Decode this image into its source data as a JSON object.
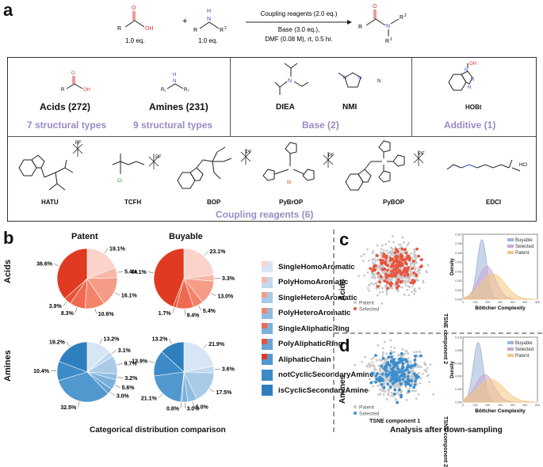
{
  "panels": {
    "a": "a",
    "b": "b",
    "c": "c",
    "d": "d"
  },
  "reaction": {
    "acid_eq": "1.0 eq.",
    "amine_eq": "1.0 eq.",
    "plus": "+",
    "conditions_top": "Coupling reagents (2.0 eq.)",
    "conditions_bottom_1": "Base (3.0 eq.),",
    "conditions_bottom_2": "DMF (0.08 M), rt, 0.5 hr.",
    "atoms": {
      "R": "R",
      "OH": "OH",
      "N": "N",
      "H": "H",
      "R1": "R",
      "R2": "R",
      "O": "O",
      "sup1": "1",
      "sup2": "2"
    }
  },
  "reagent_box": {
    "acids_label": "Acids (272)",
    "amines_label": "Amines (231)",
    "acids_types": "7 structural types",
    "amines_types": "9 structural types",
    "base_items": [
      "DIEA",
      "NMI"
    ],
    "base_n": "N",
    "base_label": "Base (2)",
    "additive_item": "HOBt",
    "additive_label": "Additive (1)",
    "coupling_items": [
      "HATU",
      "TCFH",
      "BOP",
      "PyBrOP",
      "PyBOP",
      "EDCI"
    ],
    "coupling_label": "Coupling reagents (6)",
    "hcl": "HCl",
    "pf6": "PF",
    "br": "Br",
    "cl": "Cl",
    "oh": "OH",
    "atoms_amine": "R₁",
    "atoms_amine2": "R₂"
  },
  "pies": {
    "col_patent": "Patent",
    "col_buyable": "Buyable",
    "row_acids": "Acids",
    "row_amines": "Amines",
    "caption": "Categorical distribution comparison",
    "acids_patent": {
      "values": [
        19.1,
        5.4,
        16.1,
        10.6,
        8.3,
        3.9,
        36.6
      ],
      "labels": [
        "19.1%",
        "5.4%",
        "16.1%",
        "10.6%",
        "8.3%",
        "3.9%",
        "36.6%"
      ]
    },
    "acids_buyable": {
      "values": [
        23.1,
        3.3,
        13.0,
        5.4,
        9.4,
        1.7,
        44.1
      ],
      "labels": [
        "23.1%",
        "3.3%",
        "13.0%",
        "5.4%",
        "9.4%",
        "1.7%",
        "44.1%"
      ]
    },
    "amines_patent": {
      "values": [
        13.2,
        3.1,
        9.7,
        3.2,
        5.6,
        3.0,
        32.5,
        10.4,
        19.2
      ],
      "labels": [
        "13.2%",
        "3.1%",
        "9.7%",
        "3.2%",
        "5.6%",
        "3.0%",
        "32.5%",
        "10.4%",
        "19.2%"
      ]
    },
    "amines_buyable": {
      "values": [
        21.9,
        3.6,
        17.5,
        5.0,
        3.0,
        0.8,
        21.1,
        13.9,
        13.2
      ],
      "labels": [
        "21.9%",
        "3.6%",
        "17.5%",
        "5.0%",
        "3.0%",
        "0.8%",
        "21.1%",
        "13.9%",
        "13.2%"
      ]
    },
    "acid_colors": [
      "#fbd3ca",
      "#f7b7a6",
      "#f59c86",
      "#f3846b",
      "#ef6a50",
      "#ea5337",
      "#e03a22"
    ],
    "amine_colors": [
      "#d6e6f4",
      "#c2d9ef",
      "#a9cbe8",
      "#90bce2",
      "#7bb0dc",
      "#67a4d6",
      "#5198cf",
      "#3d8bc8",
      "#2f7fbf"
    ]
  },
  "legend": {
    "items": [
      "SingleHomoAromatic",
      "PolyHomoAromatic",
      "SingleHeteroAromatic",
      "PolyHeteroAromatic",
      "SingleAliphaticRing",
      "PolyAliphaticRing",
      "AliphaticChain",
      "notCyclicSecondaryAmine",
      "isCyclicSecondaryAmine"
    ],
    "acid_colors": [
      "#fbd3ca",
      "#f7b7a6",
      "#f59c86",
      "#f3846b",
      "#ef6a50",
      "#ea5337",
      "#e03a22"
    ],
    "amine_colors": [
      "#d6e6f4",
      "#c2d9ef",
      "#a9cbe8",
      "#90bce2",
      "#7bb0dc",
      "#67a4d6",
      "#5198cf",
      "#3d8bc8",
      "#2f7fbf"
    ]
  },
  "tsne": {
    "row_acids": "Acids",
    "row_amines": "Amines",
    "yaxis": "TSNE component 2",
    "xaxis": "TSNE component 1",
    "legend_patent": "Patent",
    "legend_selected": "Selected",
    "acid_color": "#e8553e",
    "amine_color": "#3b8ed0",
    "patent_color": "#c8c8c8"
  },
  "density": {
    "ylabel": "Density",
    "xlabel": "Böttcher Complexity",
    "legend": [
      "Buyable",
      "Selected",
      "Patent"
    ],
    "colors": [
      "#9db3d8",
      "#c9a6d4",
      "#f5c77e"
    ],
    "xticks": [
      "0",
      "100",
      "200",
      "300",
      "400",
      "500",
      "600"
    ],
    "yticks_c": [
      "0.000",
      "0.001",
      "0.002",
      "0.003",
      "0.004",
      "0.005",
      "0.006",
      "0.007"
    ],
    "yticks_d": [
      "0.000",
      "0.002",
      "0.004",
      "0.006",
      "0.008",
      "0.010"
    ]
  },
  "caption_cd": "Analysis after down-sampling"
}
